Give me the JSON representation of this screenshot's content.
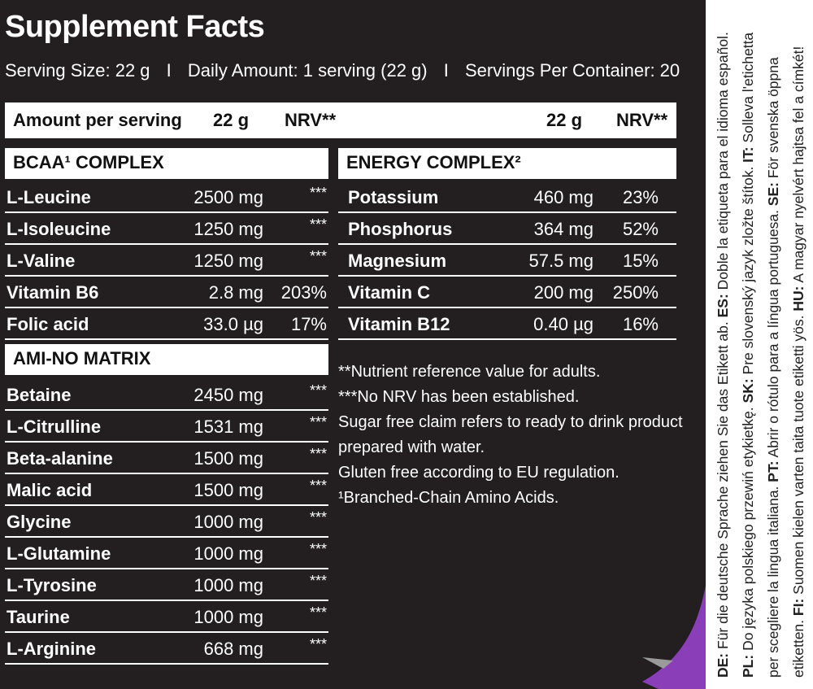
{
  "title": "Supplement Facts",
  "serving": {
    "size": "Serving Size: 22 g",
    "separator": "I",
    "daily": "Daily Amount: 1 serving (22 g)",
    "per_container": "Servings Per Container: 20"
  },
  "header": {
    "amount_per_serving": "Amount per serving",
    "col1_amount": "22 g",
    "col1_nrv": "NRV**",
    "col2_amount": "22 g",
    "col2_nrv": "NRV**"
  },
  "bcaa": {
    "title": "BCAA¹ COMPLEX",
    "rows": [
      {
        "name": "L-Leucine",
        "amount": "2500 mg",
        "nrv": "***"
      },
      {
        "name": "L-Isoleucine",
        "amount": "1250 mg",
        "nrv": "***"
      },
      {
        "name": "L-Valine",
        "amount": "1250 mg",
        "nrv": "***"
      },
      {
        "name": "Vitamin B6",
        "amount": "2.8 mg",
        "nrv": "203%"
      },
      {
        "name": "Folic acid",
        "amount": "33.0 µg",
        "nrv": "17%"
      }
    ]
  },
  "amino": {
    "title": "AMI-NO MATRIX",
    "rows": [
      {
        "name": "Betaine",
        "amount": "2450 mg",
        "nrv": "***"
      },
      {
        "name": "L-Citrulline",
        "amount": "1531 mg",
        "nrv": "***"
      },
      {
        "name": "Beta-alanine",
        "amount": "1500 mg",
        "nrv": "***"
      },
      {
        "name": "Malic acid",
        "amount": "1500 mg",
        "nrv": "***"
      },
      {
        "name": "Glycine",
        "amount": "1000 mg",
        "nrv": "***"
      },
      {
        "name": "L-Glutamine",
        "amount": "1000 mg",
        "nrv": "***"
      },
      {
        "name": "L-Tyrosine",
        "amount": "1000 mg",
        "nrv": "***"
      },
      {
        "name": "Taurine",
        "amount": "1000 mg",
        "nrv": "***"
      },
      {
        "name": "L-Arginine",
        "amount": "668 mg",
        "nrv": "***"
      }
    ]
  },
  "energy": {
    "title": "ENERGY COMPLEX²",
    "rows": [
      {
        "name": "Potassium",
        "amount": "460 mg",
        "nrv": "23%"
      },
      {
        "name": "Phosphorus",
        "amount": "364 mg",
        "nrv": "52%"
      },
      {
        "name": "Magnesium",
        "amount": "57.5 mg",
        "nrv": "15%"
      },
      {
        "name": "Vitamin C",
        "amount": "200 mg",
        "nrv": "250%"
      },
      {
        "name": "Vitamin B12",
        "amount": "0.40 µg",
        "nrv": "16%"
      }
    ]
  },
  "notes": [
    "**Nutrient reference value for adults.",
    "***No NRV has been established.",
    "Sugar free claim refers to ready to drink product",
    "prepared with water.",
    "Gluten free according to EU regulation.",
    "¹Branched-Chain Amino Acids."
  ],
  "side_lines": [
    [
      {
        "code": "DE:",
        "text": " Für die deutsche Sprache ziehen Sie das Etikett ab. "
      },
      {
        "code": "ES:",
        "text": " Doble la etiqueta para el idioma español."
      }
    ],
    [
      {
        "code": "PL:",
        "text": " Do języka polskiego przewiń etykietkę. "
      },
      {
        "code": "SK:",
        "text": " Pre slovenský jazyk zložte štítok. "
      },
      {
        "code": "IT:",
        "text": " Solleva l'etichetta"
      }
    ],
    [
      {
        "code": "",
        "text": "per scegliere la lingua italiana. "
      },
      {
        "code": "PT:",
        "text": " Abrir o rótulo para a língua portuguesa. "
      },
      {
        "code": "SE:",
        "text": " För svenska öppna"
      }
    ],
    [
      {
        "code": "",
        "text": "etiketten. "
      },
      {
        "code": "FI:",
        "text": " Suomen kielen varten taita tuote etiketti yös. "
      },
      {
        "code": "HU:",
        "text": " A magyar nyelvért hajtsa fel a címkét!"
      }
    ]
  ],
  "colors": {
    "panel": "#231f20",
    "accent": "#8a3fb8"
  }
}
